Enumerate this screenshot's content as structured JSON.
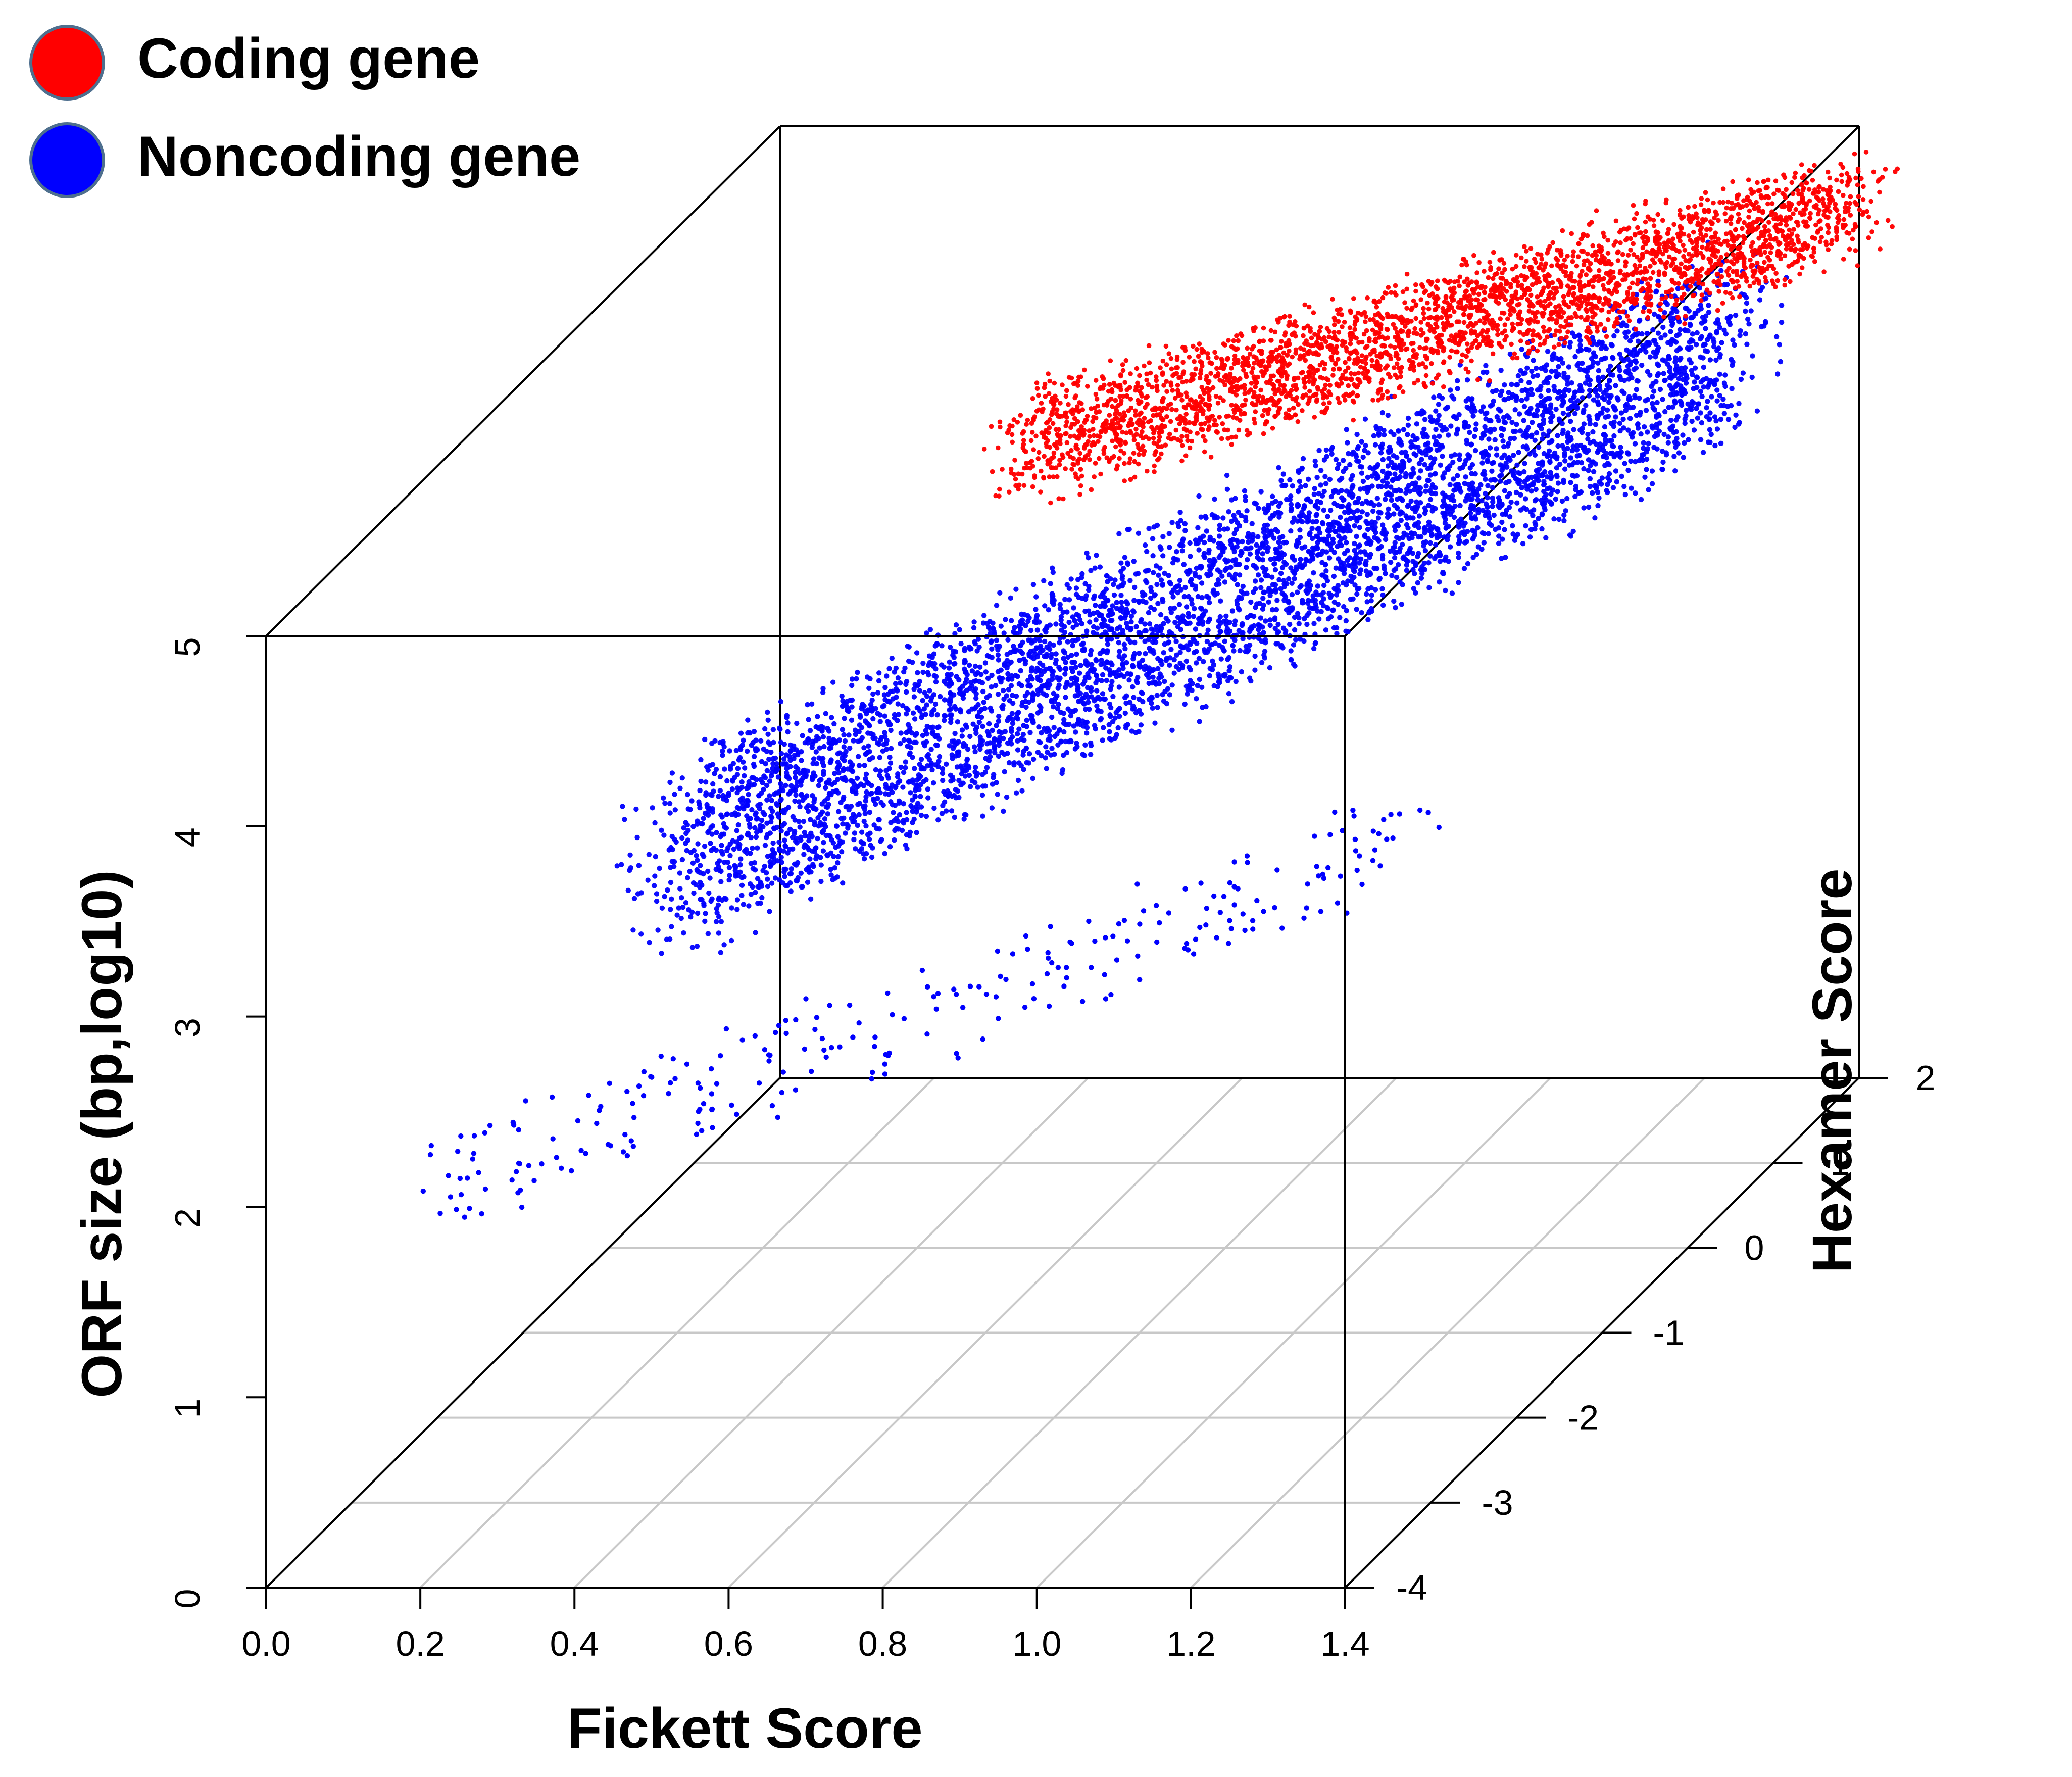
{
  "chart_data": {
    "type": "scatter",
    "projection": "3d",
    "x_axis": {
      "label": "Fickett Score",
      "range": [
        0.0,
        1.4
      ],
      "ticks": [
        "0.0",
        "0.2",
        "0.4",
        "0.6",
        "0.8",
        "1.0",
        "1.2",
        "1.4"
      ]
    },
    "y_axis": {
      "label": "Hexamer Score",
      "range": [
        -4,
        2
      ],
      "ticks": [
        "-4",
        "-3",
        "-2",
        "-1",
        "0",
        "1",
        "2"
      ]
    },
    "z_axis": {
      "label": "ORF size (bp,log10)",
      "range": [
        0,
        5
      ],
      "ticks": [
        "0",
        "1",
        "2",
        "3",
        "4",
        "5"
      ]
    },
    "grid": "xy-floor",
    "legend_position": "top-left",
    "series": [
      {
        "name": "Coding gene",
        "color": "#ff0000",
        "points": [
          [
            0.6,
            0.9,
            4.25
          ],
          [
            0.7,
            1.1,
            4.35
          ],
          [
            0.8,
            1.3,
            4.4
          ],
          [
            0.9,
            1.4,
            4.45
          ],
          [
            1.0,
            1.6,
            4.5
          ],
          [
            1.1,
            1.7,
            4.55
          ],
          [
            1.2,
            1.8,
            4.6
          ],
          [
            1.3,
            1.9,
            4.65
          ]
        ]
      },
      {
        "name": "Noncoding gene",
        "color": "#0000ff",
        "points": [
          [
            0.45,
            -1.6,
            3.4
          ],
          [
            0.55,
            -1.2,
            3.5
          ],
          [
            0.65,
            -0.8,
            3.55
          ],
          [
            0.75,
            -0.4,
            3.6
          ],
          [
            0.85,
            0.0,
            3.65
          ],
          [
            0.95,
            0.4,
            3.7
          ],
          [
            1.05,
            0.8,
            3.75
          ],
          [
            1.15,
            1.2,
            3.8
          ]
        ]
      }
    ]
  }
}
